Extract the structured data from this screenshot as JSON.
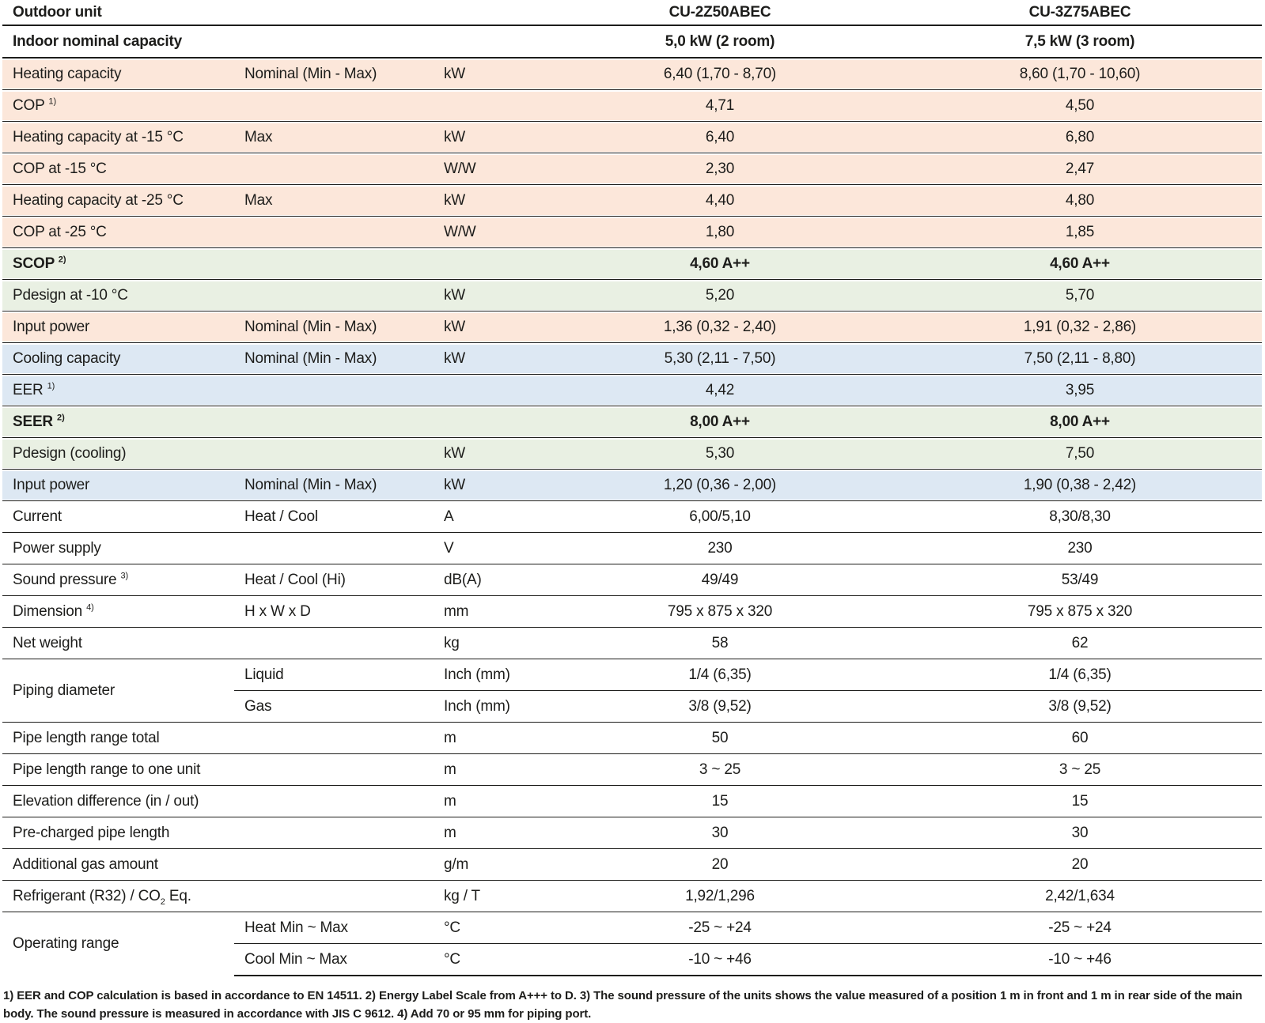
{
  "header": {
    "outdoor_label": "Outdoor unit",
    "model1": "CU-2Z50ABEC",
    "model2": "CU-3Z75ABEC",
    "capacity_label": "Indoor nominal capacity",
    "capacity1": "5,0 kW (2 room)",
    "capacity2": "7,5 kW (3 room)"
  },
  "colors": {
    "heating_row_bg": "#fce7da",
    "seasonal_row_bg": "#e9f0e3",
    "cooling_row_bg": "#dde8f3",
    "rule_line": "#1d1d1b",
    "text": "#1d1d1b"
  },
  "rows": [
    {
      "label": "Heating capacity",
      "sublabel": "Nominal (Min - Max)",
      "unit": "kW",
      "v1": "6,40 (1,70 - 8,70)",
      "v2": "8,60 (1,70 - 10,60)",
      "bg": "pink"
    },
    {
      "label": "COP",
      "sup": "1)",
      "sublabel": "",
      "unit": "",
      "v1": "4,71",
      "v2": "4,50",
      "bg": "pink"
    },
    {
      "label": "Heating capacity at -15 °C",
      "sublabel": "Max",
      "unit": "kW",
      "v1": "6,40",
      "v2": "6,80",
      "bg": "pink"
    },
    {
      "label": "COP at -15 °C",
      "sublabel": "",
      "unit": "W/W",
      "v1": "2,30",
      "v2": "2,47",
      "bg": "pink"
    },
    {
      "label": "Heating capacity at -25 °C",
      "sublabel": "Max",
      "unit": "kW",
      "v1": "4,40",
      "v2": "4,80",
      "bg": "pink"
    },
    {
      "label": "COP at -25 °C",
      "sublabel": "",
      "unit": "W/W",
      "v1": "1,80",
      "v2": "1,85",
      "bg": "pink"
    },
    {
      "label": "SCOP",
      "sup": "2)",
      "sublabel": "",
      "unit": "",
      "v1": "4,60 A++",
      "v2": "4,60 A++",
      "bg": "green",
      "bold": true
    },
    {
      "label": "Pdesign at -10 °C",
      "sublabel": "",
      "unit": "kW",
      "v1": "5,20",
      "v2": "5,70",
      "bg": "green"
    },
    {
      "label": "Input power",
      "sublabel": "Nominal (Min - Max)",
      "unit": "kW",
      "v1": "1,36 (0,32 - 2,40)",
      "v2": "1,91 (0,32 - 2,86)",
      "bg": "pink"
    },
    {
      "label": "Cooling capacity",
      "sublabel": "Nominal (Min - Max)",
      "unit": "kW",
      "v1": "5,30 (2,11 - 7,50)",
      "v2": "7,50 (2,11 - 8,80)",
      "bg": "blue"
    },
    {
      "label": "EER",
      "sup": "1)",
      "sublabel": "",
      "unit": "",
      "v1": "4,42",
      "v2": "3,95",
      "bg": "blue"
    },
    {
      "label": "SEER",
      "sup": "2)",
      "sublabel": "",
      "unit": "",
      "v1": "8,00 A++",
      "v2": "8,00 A++",
      "bg": "green",
      "bold": true
    },
    {
      "label": "Pdesign (cooling)",
      "sublabel": "",
      "unit": "kW",
      "v1": "5,30",
      "v2": "7,50",
      "bg": "green"
    },
    {
      "label": "Input power",
      "sublabel": "Nominal (Min - Max)",
      "unit": "kW",
      "v1": "1,20 (0,36 - 2,00)",
      "v2": "1,90 (0,38 - 2,42)",
      "bg": "blue"
    },
    {
      "label": "Current",
      "sublabel": "Heat / Cool",
      "unit": "A",
      "v1": "6,00/5,10",
      "v2": "8,30/8,30",
      "bg": "white"
    },
    {
      "label": "Power supply",
      "sublabel": "",
      "unit": "V",
      "v1": "230",
      "v2": "230",
      "bg": "white"
    },
    {
      "label": "Sound pressure",
      "sup": "3)",
      "sublabel": "Heat / Cool (Hi)",
      "unit": "dB(A)",
      "v1": "49/49",
      "v2": "53/49",
      "bg": "white"
    },
    {
      "label": "Dimension",
      "sup": "4)",
      "sublabel": "H x W x D",
      "unit": "mm",
      "v1": "795 x 875 x 320",
      "v2": "795 x 875 x 320",
      "bg": "white"
    },
    {
      "label": "Net weight",
      "sublabel": "",
      "unit": "kg",
      "v1": "58",
      "v2": "62",
      "bg": "white"
    },
    {
      "label": "Piping diameter",
      "group": 2,
      "sublabel": "Liquid",
      "unit": "Inch (mm)",
      "v1": "1/4 (6,35)",
      "v2": "1/4 (6,35)",
      "bg": "white"
    },
    {
      "group_member": true,
      "sublabel": "Gas",
      "unit": "Inch (mm)",
      "v1": "3/8 (9,52)",
      "v2": "3/8 (9,52)",
      "bg": "white"
    },
    {
      "label": "Pipe length range total",
      "sublabel": "",
      "unit": "m",
      "v1": "50",
      "v2": "60",
      "bg": "white"
    },
    {
      "label": "Pipe length range to one unit",
      "sublabel": "",
      "unit": "m",
      "v1": "3 ~ 25",
      "v2": "3 ~ 25",
      "bg": "white"
    },
    {
      "label": "Elevation difference (in / out)",
      "sublabel": "",
      "unit": "m",
      "v1": "15",
      "v2": "15",
      "bg": "white"
    },
    {
      "label": "Pre-charged pipe length",
      "sublabel": "",
      "unit": "m",
      "v1": "30",
      "v2": "30",
      "bg": "white"
    },
    {
      "label": "Additional gas amount",
      "sublabel": "",
      "unit": "g/m",
      "v1": "20",
      "v2": "20",
      "bg": "white"
    },
    {
      "label": "Refrigerant (R32) / CO",
      "sub_chem": "2",
      "label_after": " Eq.",
      "sublabel": "",
      "unit": "kg / T",
      "v1": "1,92/1,296",
      "v2": "2,42/1,634",
      "bg": "white"
    },
    {
      "label": "Operating range",
      "group": 2,
      "sublabel": "Heat Min ~ Max",
      "unit": "°C",
      "v1": "-25 ~ +24",
      "v2": "-25 ~ +24",
      "bg": "white"
    },
    {
      "group_member": true,
      "sublabel": "Cool Min ~ Max",
      "unit": "°C",
      "v1": "-10 ~ +46",
      "v2": "-10 ~ +46",
      "bg": "white"
    }
  ],
  "footnote": "1) EER and COP calculation is based in accordance to EN 14511. 2) Energy Label Scale from A+++ to D. 3) The sound pressure of the units shows the value measured of a position 1 m in front and 1 m in rear side of the main body. The sound pressure is measured in accordance with JIS C 9612. 4) Add 70 or 95 mm for piping port."
}
